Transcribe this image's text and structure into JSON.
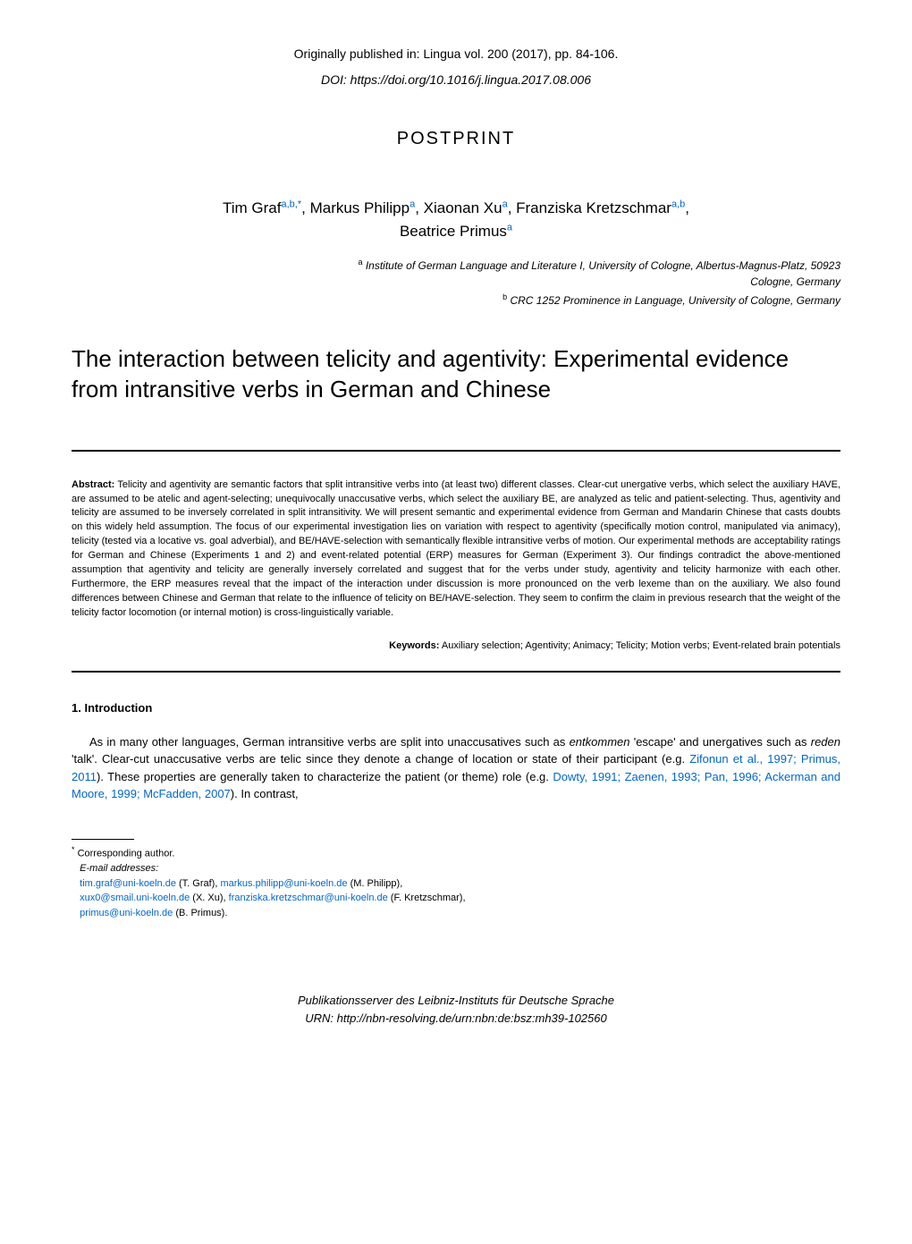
{
  "header": {
    "pub_info": "Originally published in: Lingua vol. 200 (2017), pp. 84-106.",
    "doi_label": "DOI: ",
    "doi": "https://doi.org/10.1016/j.lingua.2017.08.006",
    "postprint": "POSTPRINT"
  },
  "authors": [
    {
      "name": "Tim Graf",
      "affil": "a,b,*"
    },
    {
      "name": "Markus Philipp",
      "affil": "a"
    },
    {
      "name": "Xiaonan Xu",
      "affil": "a"
    },
    {
      "name": "Franziska Kretzschmar",
      "affil": "a,b"
    },
    {
      "name": "Beatrice Primus",
      "affil": "a"
    }
  ],
  "affiliations": [
    {
      "label": "a",
      "text": "Institute of German Language and Literature I, University of Cologne, Albertus-Magnus-Platz, 50923 Cologne, Germany"
    },
    {
      "label": "b",
      "text": "CRC 1252 Prominence in Language, University of Cologne, Germany"
    }
  ],
  "title": "The interaction between telicity and agentivity: Experimental evidence from intransitive verbs in German and Chinese",
  "abstract": {
    "label": "Abstract:",
    "text": " Telicity and agentivity are semantic factors that split intransitive verbs into (at least two) different classes. Clear-cut unergative verbs, which select the auxiliary HAVE, are assumed to be atelic and agent-selecting; unequivocally unaccusative verbs, which select the auxiliary BE, are analyzed as telic and patient-selecting. Thus, agentivity and telicity are assumed to be inversely correlated in split intransitivity. We will present semantic and experimental evidence from German and Mandarin Chinese that casts doubts on this widely held assumption. The focus of our experimental investigation lies on variation with respect to agentivity (specifically motion control, manipulated via animacy), telicity (tested via a locative vs. goal adverbial), and BE/HAVE-selection with semantically flexible intransitive verbs of motion. Our experimental methods are acceptability ratings for German and Chinese (Experiments 1 and 2) and event-related potential (ERP) measures for German (Experiment 3). Our findings contradict the above-mentioned assumption that agentivity and telicity are generally inversely correlated and suggest that for the verbs under study, agentivity and telicity harmonize with each other. Furthermore, the ERP measures reveal that the impact of the interaction under discussion is more pronounced on the verb lexeme than on the auxiliary. We also found differences between Chinese and German that relate to the influence of telicity on BE/HAVE-selection. They seem to confirm the claim in previous research that the weight of the telicity factor locomotion (or internal motion) is cross-linguistically variable."
  },
  "keywords": {
    "label": "Keywords:",
    "text": " Auxiliary selection; Agentivity; Animacy; Telicity; Motion verbs; Event-related brain potentials"
  },
  "intro": {
    "heading": "1. Introduction",
    "para1_a": "As in many other languages, German intransitive verbs are split into unaccusatives such as ",
    "para1_entkommen": "entkommen",
    "para1_b": " 'escape' and unergatives such as ",
    "para1_reden": "reden",
    "para1_c": " 'talk'. Clear-cut unaccusative verbs are telic since they denote a change of location or state of their participant (e.g. ",
    "para1_cite1": "Zifonun et al., 1997; Primus, 2011",
    "para1_d": "). These properties are generally taken to characterize the patient (or theme) role (e.g. ",
    "para1_cite2": "Dowty, 1991; Zaenen, 1993; Pan, 1996; Ackerman and Moore, 1999; McFadden, 2007",
    "para1_e": "). In contrast,"
  },
  "footnote": {
    "corresponding": "Corresponding author.",
    "email_label": "E-mail addresses:",
    "emails": [
      {
        "addr": "tim.graf@uni-koeln.de",
        "name": "(T. Graf)"
      },
      {
        "addr": "markus.philipp@uni-koeln.de",
        "name": "(M. Philipp)"
      },
      {
        "addr": "xux0@smail.uni-koeln.de",
        "name": "(X. Xu)"
      },
      {
        "addr": "franziska.kretzschmar@uni-koeln.de",
        "name": "(F. Kretzschmar)"
      },
      {
        "addr": "primus@uni-koeln.de",
        "name": "(B. Primus)."
      }
    ]
  },
  "footer": {
    "line1": "Publikationsserver des Leibniz-Instituts für Deutsche Sprache",
    "line2": "URN: http://nbn-resolving.de/urn:nbn:de:bsz:mh39-102560"
  }
}
